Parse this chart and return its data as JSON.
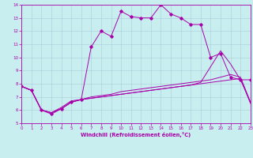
{
  "xlabel": "Windchill (Refroidissement éolien,°C)",
  "xlim": [
    0,
    23
  ],
  "ylim": [
    5,
    14
  ],
  "xticks": [
    0,
    1,
    2,
    3,
    4,
    5,
    6,
    7,
    8,
    9,
    10,
    11,
    12,
    13,
    14,
    15,
    16,
    17,
    18,
    19,
    20,
    21,
    22,
    23
  ],
  "yticks": [
    5,
    6,
    7,
    8,
    9,
    10,
    11,
    12,
    13,
    14
  ],
  "bg_color": "#c8eef0",
  "grid_color": "#a8ccd8",
  "line_color": "#aa00aa",
  "series": [
    [
      7.8,
      7.5,
      6.0,
      5.7,
      6.1,
      6.6,
      6.8,
      10.8,
      12.0,
      11.6,
      13.5,
      13.1,
      13.0,
      13.0,
      14.0,
      13.3,
      13.0,
      12.5,
      12.5,
      10.0,
      10.3,
      8.5,
      8.3,
      8.3
    ],
    [
      7.8,
      7.5,
      6.0,
      5.8,
      6.2,
      6.7,
      6.8,
      7.0,
      7.1,
      7.2,
      7.4,
      7.5,
      7.6,
      7.7,
      7.8,
      7.9,
      8.0,
      8.1,
      8.2,
      8.3,
      8.5,
      8.7,
      8.5,
      6.6
    ],
    [
      7.8,
      7.5,
      6.0,
      5.8,
      6.1,
      6.6,
      6.8,
      6.9,
      7.0,
      7.1,
      7.2,
      7.3,
      7.4,
      7.5,
      7.6,
      7.7,
      7.8,
      7.9,
      8.1,
      9.3,
      10.5,
      9.5,
      8.3,
      6.6
    ],
    [
      7.8,
      7.5,
      6.0,
      5.8,
      6.1,
      6.6,
      6.8,
      6.9,
      7.0,
      7.1,
      7.2,
      7.3,
      7.4,
      7.5,
      7.6,
      7.7,
      7.8,
      7.9,
      8.0,
      8.1,
      8.2,
      8.3,
      8.4,
      6.5
    ]
  ],
  "marker": "D",
  "markersize": 1.8,
  "linewidth": 0.7,
  "tick_fontsize": 4.0,
  "xlabel_fontsize": 4.8
}
